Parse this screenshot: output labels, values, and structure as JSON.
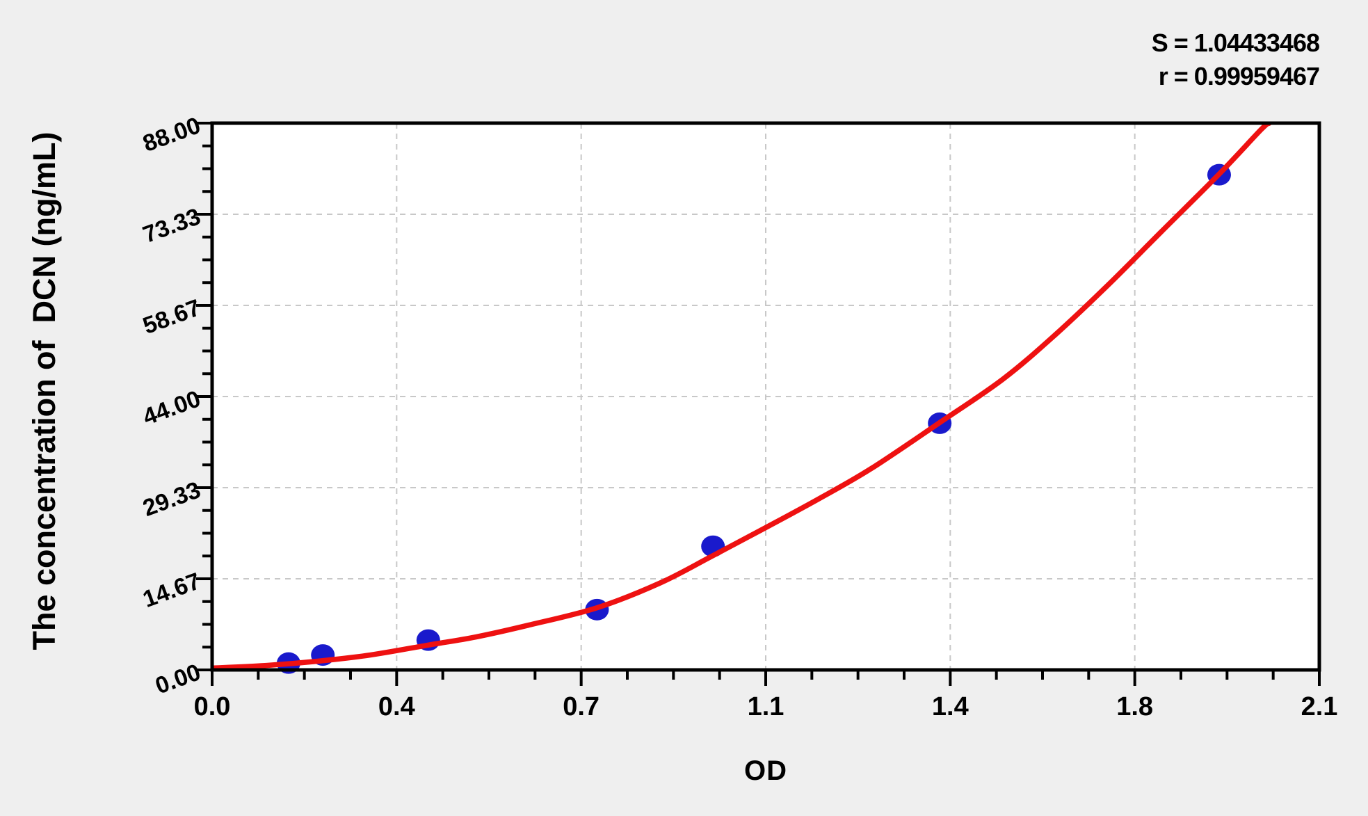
{
  "annotation": {
    "s_label": "S = 1.04433468",
    "r_label": "r = 0.99959467"
  },
  "colors": {
    "background": "#efefef",
    "plot_background": "#ffffff",
    "axis": "#000000",
    "grid": "#c8c8c8",
    "curve": "#ee1111",
    "point": "#1a1acc"
  },
  "chart_data": {
    "type": "scatter",
    "title": "",
    "xlabel": "OD",
    "ylabel": "The concentration of  DCN (ng/mL)",
    "xlim": [
      0,
      2.1
    ],
    "ylim": [
      0,
      88
    ],
    "x_tick_values": [
      0,
      0.35,
      0.7,
      1.05,
      1.4,
      1.75,
      2.1
    ],
    "x_tick_labels": [
      "0.0",
      "0.4",
      "0.7",
      "1.1",
      "1.4",
      "1.8",
      "2.1"
    ],
    "y_tick_values": [
      0,
      14.667,
      29.333,
      44,
      58.667,
      73.333,
      88
    ],
    "y_tick_labels": [
      "0.00",
      "14.67",
      "29.33",
      "44.00",
      "58.67",
      "73.33",
      "88.00"
    ],
    "minor_ticks_per_interval": 3,
    "grid": "dashed",
    "legend_position": "none",
    "fit_stats": {
      "S": "1.04433468",
      "r": "0.99959467"
    },
    "series": [
      {
        "name": "standard points",
        "type": "scatter",
        "points": [
          [
            0.145,
            1.1
          ],
          [
            0.21,
            2.4
          ],
          [
            0.41,
            4.8
          ],
          [
            0.73,
            9.7
          ],
          [
            0.95,
            19.9
          ],
          [
            1.38,
            39.7
          ],
          [
            1.91,
            79.7
          ]
        ]
      },
      {
        "name": "fitted curve",
        "type": "line",
        "points": [
          [
            0,
            0.3
          ],
          [
            0.1,
            0.7
          ],
          [
            0.2,
            1.4
          ],
          [
            0.3,
            2.4
          ],
          [
            0.41,
            4.0
          ],
          [
            0.5,
            5.3
          ],
          [
            0.6,
            7.2
          ],
          [
            0.73,
            10.0
          ],
          [
            0.85,
            14.0
          ],
          [
            0.95,
            18.4
          ],
          [
            1.05,
            22.9
          ],
          [
            1.15,
            27.5
          ],
          [
            1.25,
            32.4
          ],
          [
            1.38,
            39.8
          ],
          [
            1.5,
            46.8
          ],
          [
            1.6,
            54.0
          ],
          [
            1.7,
            62.0
          ],
          [
            1.8,
            70.5
          ],
          [
            1.91,
            79.8
          ],
          [
            1.99,
            87.0
          ],
          [
            2.005,
            88
          ]
        ]
      }
    ]
  }
}
